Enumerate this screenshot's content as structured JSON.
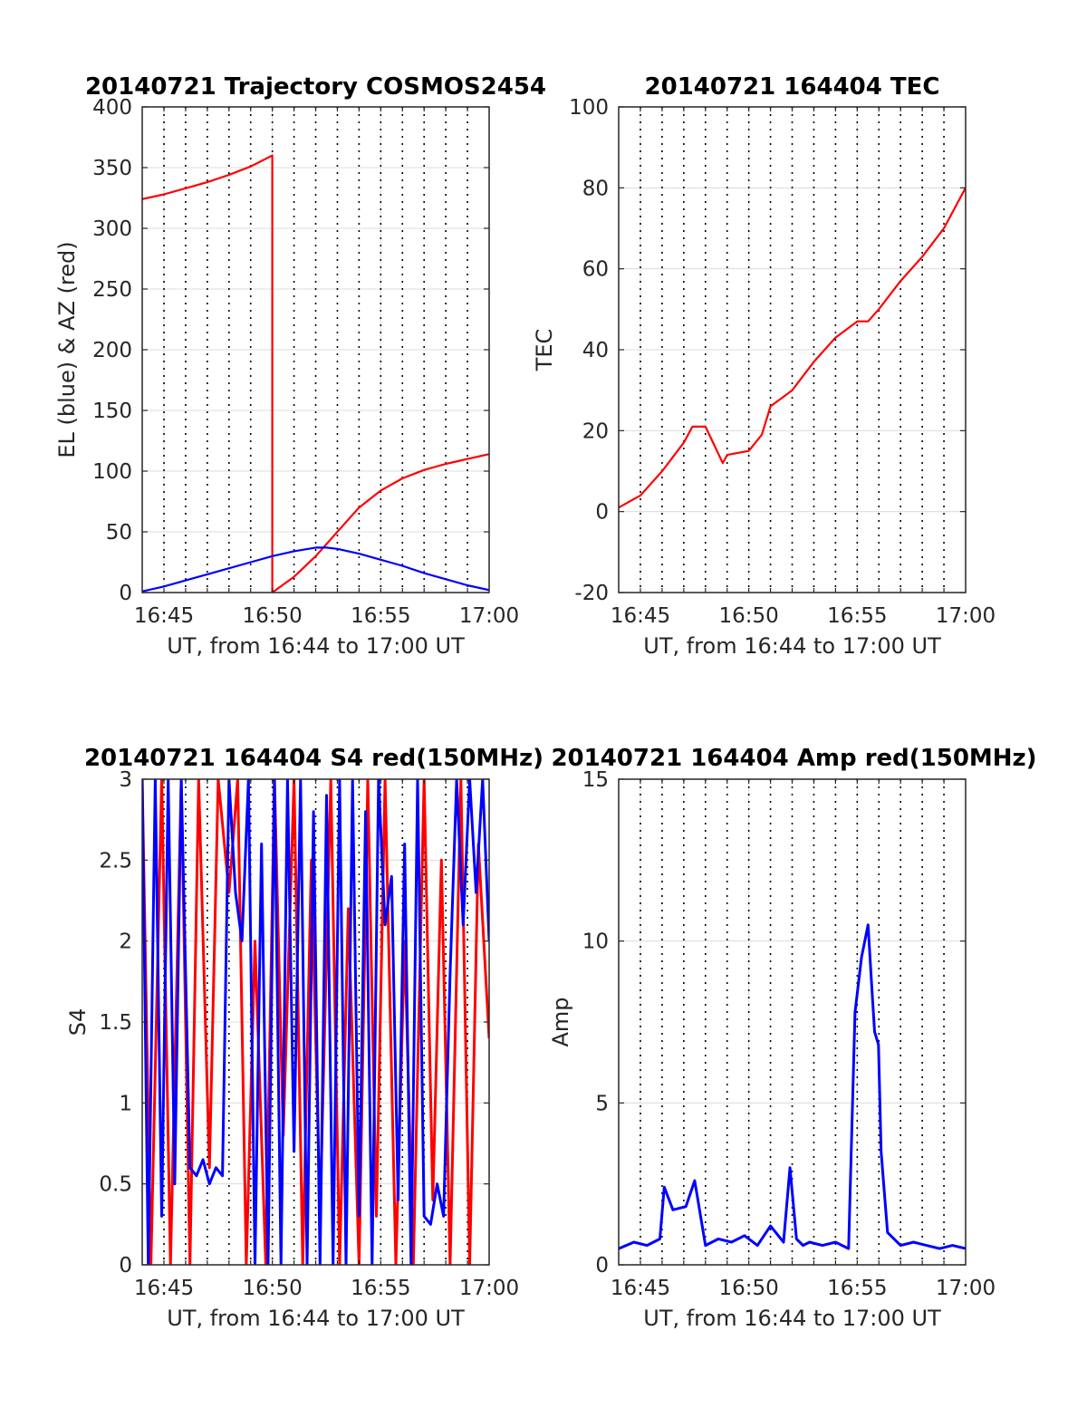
{
  "chart_data": [
    {
      "type": "line",
      "title": "20140721 Trajectory COSMOS2454",
      "xlabel": "UT, from 16:44 to 17:00 UT",
      "ylabel": "EL (blue) & AZ (red)",
      "xlim": [
        16.7333,
        17.0
      ],
      "ylim": [
        0,
        400
      ],
      "yticks": [
        0,
        50,
        100,
        150,
        200,
        250,
        300,
        350,
        400
      ],
      "xtick_labels": [
        "16:45",
        "16:50",
        "16:55",
        "17:00"
      ],
      "grid": true,
      "series": [
        {
          "color": "#ff0000",
          "x": [
            16.7333,
            16.75,
            16.7667,
            16.7833,
            16.8,
            16.8167,
            16.8333,
            16.8333,
            16.85,
            16.8667,
            16.8833,
            16.9,
            16.9167,
            16.9333,
            16.95,
            16.9667,
            16.9833,
            17.0
          ],
          "y": [
            324,
            328,
            333,
            338,
            344,
            351,
            360,
            0,
            13,
            30,
            50,
            70,
            84,
            94,
            101,
            106,
            110,
            114
          ]
        },
        {
          "color": "#0000ff",
          "x": [
            16.7333,
            16.75,
            16.7667,
            16.7833,
            16.8,
            16.8167,
            16.8333,
            16.85,
            16.8667,
            16.875,
            16.8833,
            16.9,
            16.9167,
            16.9333,
            16.95,
            16.9667,
            16.9833,
            17.0
          ],
          "y": [
            1,
            5,
            10,
            15,
            20,
            25,
            30,
            34,
            37,
            37,
            36,
            32,
            27,
            22,
            16,
            11,
            6,
            2
          ]
        }
      ]
    },
    {
      "type": "line",
      "title": "20140721 164404 TEC",
      "xlabel": "UT, from 16:44 to 17:00 UT",
      "ylabel": "TEC",
      "xlim": [
        16.7333,
        17.0
      ],
      "ylim": [
        -20,
        100
      ],
      "yticks": [
        -20,
        0,
        20,
        40,
        60,
        80,
        100
      ],
      "xtick_labels": [
        "16:45",
        "16:50",
        "16:55",
        "17:00"
      ],
      "grid": true,
      "series": [
        {
          "color": "#ff0000",
          "x": [
            16.7333,
            16.75,
            16.7667,
            16.7833,
            16.79,
            16.8,
            16.8133,
            16.8167,
            16.8333,
            16.8433,
            16.85,
            16.8667,
            16.8833,
            16.9,
            16.9167,
            16.925,
            16.9333,
            16.95,
            16.9667,
            16.9833,
            17.0
          ],
          "y": [
            1,
            4,
            10,
            17,
            21,
            21,
            12,
            14,
            15,
            19,
            26,
            30,
            37,
            43,
            47,
            47,
            50,
            57,
            63,
            70,
            80
          ]
        }
      ]
    },
    {
      "type": "line",
      "title": "20140721 164404 S4 red(150MHz)",
      "xlabel": "UT, from 16:44 to 17:00 UT",
      "ylabel": "S4",
      "xlim": [
        16.7333,
        17.0
      ],
      "ylim": [
        0,
        3
      ],
      "yticks": [
        0,
        0.5,
        1,
        1.5,
        2,
        2.5,
        3
      ],
      "ytick_labels": [
        "0",
        "0.5",
        "1",
        "1.5",
        "2",
        "2.5",
        "3"
      ],
      "xtick_labels": [
        "16:45",
        "16:50",
        "16:55",
        "17:00"
      ],
      "grid": true,
      "series": [
        {
          "color": "#ff0000",
          "x": [
            16.7333,
            16.74,
            16.7483,
            16.755,
            16.7633,
            16.77,
            16.7767,
            16.785,
            16.7917,
            16.8,
            16.8067,
            16.8133,
            16.82,
            16.8283,
            16.835,
            16.8417,
            16.85,
            16.8567,
            16.8633,
            16.87,
            16.8783,
            16.885,
            16.8917,
            16.9,
            16.9067,
            16.9133,
            16.92,
            16.9283,
            16.935,
            16.9417,
            16.95,
            16.9567,
            16.9633,
            16.97,
            16.9783,
            16.985,
            16.9917,
            17.0
          ],
          "y": [
            3,
            0,
            3,
            0,
            3,
            0,
            3,
            0.6,
            3,
            2.3,
            3,
            0,
            2.0,
            0,
            3,
            0.8,
            3,
            0,
            2.5,
            0.3,
            3,
            0,
            2.2,
            0,
            3,
            0.3,
            3,
            0,
            2.0,
            0,
            3,
            0.4,
            2.5,
            0,
            3,
            0,
            2.6,
            1.4
          ]
        },
        {
          "color": "#0000ff",
          "x": [
            16.7333,
            16.738,
            16.7433,
            16.7483,
            16.7533,
            16.7583,
            16.7633,
            16.77,
            16.775,
            16.78,
            16.785,
            16.79,
            16.795,
            16.8,
            16.805,
            16.81,
            16.815,
            16.82,
            16.825,
            16.83,
            16.835,
            16.84,
            16.845,
            16.85,
            16.855,
            16.86,
            16.865,
            16.87,
            16.875,
            16.88,
            16.885,
            16.89,
            16.895,
            16.9,
            16.905,
            16.91,
            16.915,
            16.92,
            16.925,
            16.93,
            16.935,
            16.94,
            16.945,
            16.95,
            16.955,
            16.96,
            16.965,
            16.97,
            16.975,
            16.98,
            16.985,
            16.99,
            16.995,
            17.0
          ],
          "y": [
            3,
            0,
            3,
            0.3,
            3,
            0.5,
            3,
            0.6,
            0.55,
            0.65,
            0.5,
            0.6,
            0.55,
            3,
            2.3,
            2.0,
            3,
            0,
            2.6,
            0,
            3,
            0,
            3,
            0.7,
            3,
            0,
            2.8,
            0,
            2.9,
            0,
            3,
            0,
            3,
            0.3,
            2.8,
            0,
            3,
            2.1,
            2.4,
            0.4,
            2.6,
            0,
            3,
            0.3,
            0.25,
            0.5,
            0.3,
            1.8,
            3,
            2.1,
            3,
            2.3,
            3,
            2.0
          ]
        }
      ]
    },
    {
      "type": "line",
      "title": "20140721 164404 Amp red(150MHz)",
      "xlabel": "UT, from 16:44 to 17:00 UT",
      "ylabel": "Amp",
      "xlim": [
        16.7333,
        17.0
      ],
      "ylim": [
        0,
        15
      ],
      "yticks": [
        0,
        5,
        10,
        15
      ],
      "xtick_labels": [
        "16:45",
        "16:50",
        "16:55",
        "17:00"
      ],
      "grid": true,
      "series": [
        {
          "color": "#0000ff",
          "x": [
            16.7333,
            16.745,
            16.755,
            16.765,
            16.7683,
            16.775,
            16.785,
            16.7917,
            16.8,
            16.81,
            16.82,
            16.83,
            16.84,
            16.85,
            16.86,
            16.865,
            16.87,
            16.875,
            16.88,
            16.89,
            16.9,
            16.91,
            16.915,
            16.92,
            16.925,
            16.928,
            16.93,
            16.933,
            16.935,
            16.94,
            16.945,
            16.95,
            16.96,
            16.97,
            16.98,
            16.99,
            17.0
          ],
          "y": [
            0.5,
            0.7,
            0.6,
            0.8,
            2.4,
            1.7,
            1.8,
            2.6,
            0.6,
            0.8,
            0.7,
            0.9,
            0.6,
            1.2,
            0.7,
            3.0,
            0.8,
            0.6,
            0.7,
            0.6,
            0.7,
            0.5,
            7.8,
            9.5,
            10.5,
            8.5,
            7.2,
            6.8,
            3.5,
            1.0,
            0.8,
            0.6,
            0.7,
            0.6,
            0.5,
            0.6,
            0.5
          ]
        }
      ]
    }
  ]
}
